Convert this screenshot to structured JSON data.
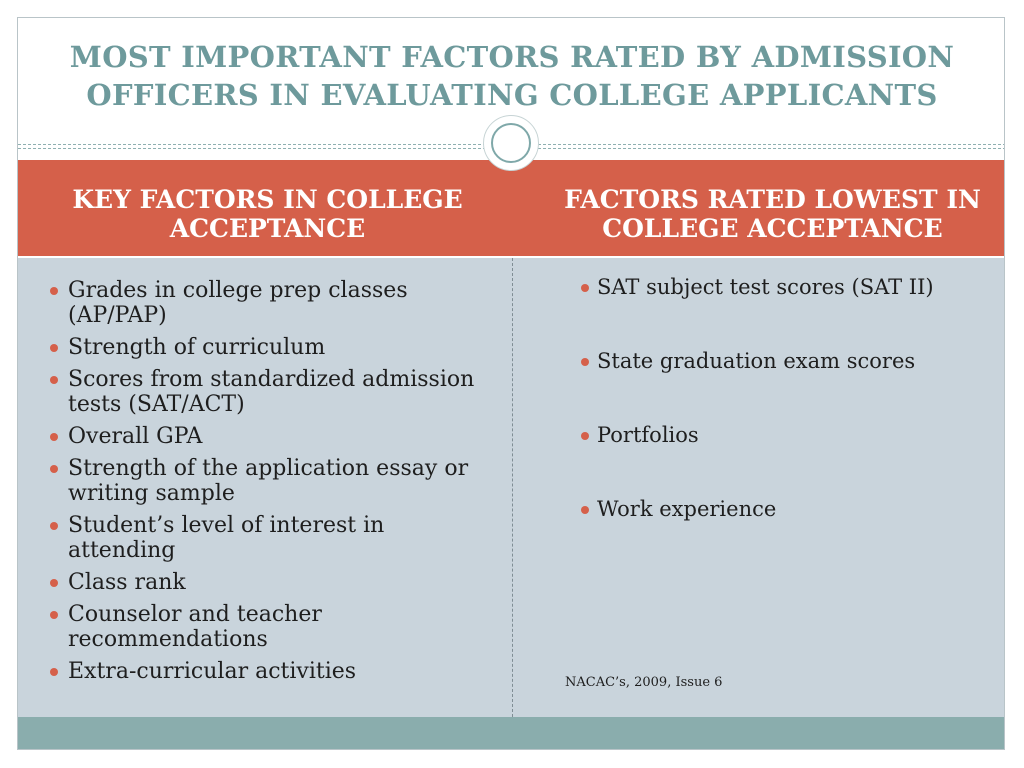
{
  "title": "MOST IMPORTANT FACTORS RATED BY ADMISSION OFFICERS IN EVALUATING COLLEGE APPLICANTS",
  "left_column": {
    "heading": "KEY FACTORS IN COLLEGE ACCEPTANCE",
    "items": [
      "Grades in college prep classes (AP/PAP)",
      "Strength of curriculum",
      "Scores from standardized admission tests (SAT/ACT)",
      "Overall GPA",
      "Strength of the application essay or writing sample",
      "Student’s level of interest in attending",
      "Class rank",
      "Counselor and teacher recommendations",
      "Extra-curricular activities"
    ]
  },
  "right_column": {
    "heading": "FACTORS RATED LOWEST IN COLLEGE  ACCEPTANCE",
    "items": [
      "SAT subject test scores (SAT II)",
      "State graduation exam scores",
      "Portfolios",
      "Work experience"
    ],
    "citation": "NACAC’s, 2009, Issue 6"
  },
  "colors": {
    "title": "#6e9a9c",
    "header_band": "#d5604a",
    "body_band": "#c9d4dc",
    "footer_band": "#8aadad",
    "bullet": "#d5604a"
  }
}
